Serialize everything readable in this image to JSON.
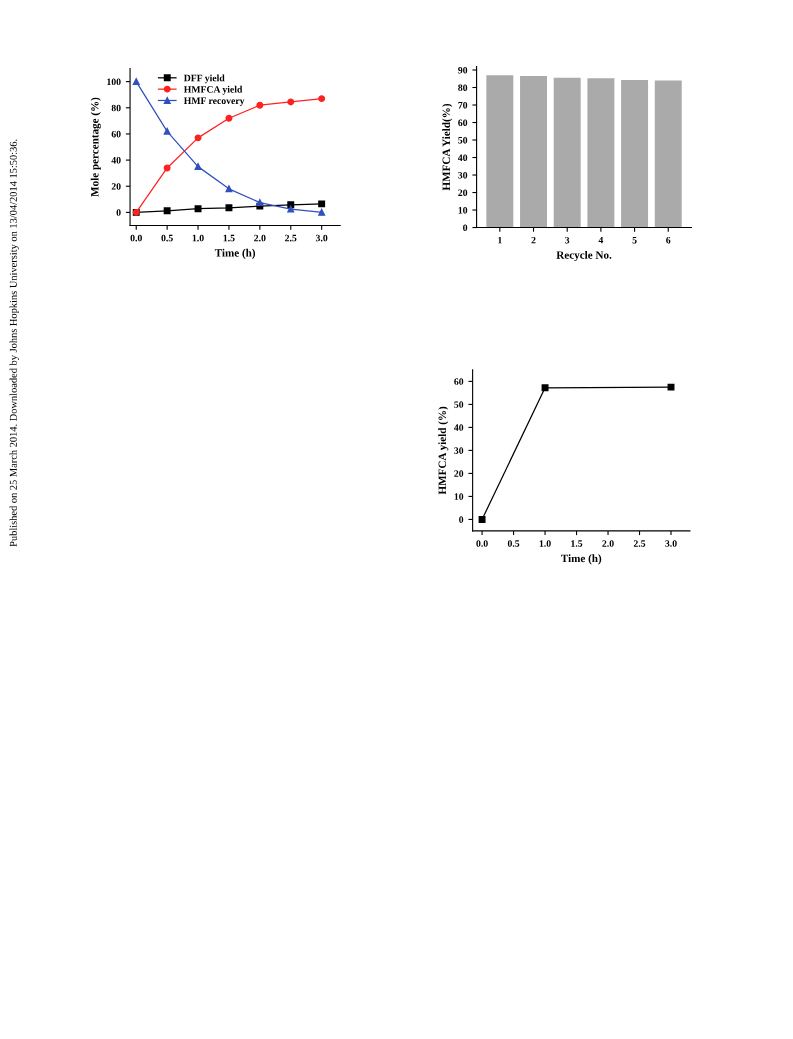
{
  "chart_data": [
    {
      "type": "line",
      "xlabel": "Time (h)",
      "ylabel": "Mole percentage (%)",
      "x": [
        0,
        0.5,
        1.0,
        1.5,
        2.0,
        2.5,
        3.0
      ],
      "series": [
        {
          "name": "DFF yield",
          "color": "#000000",
          "marker": "square",
          "values": [
            0,
            1.2,
            2.8,
            3.5,
            4.8,
            5.8,
            6.5
          ]
        },
        {
          "name": "HMFCA yield",
          "color": "#ff2020",
          "marker": "circle",
          "values": [
            0,
            34,
            57,
            72,
            82,
            84.5,
            87
          ]
        },
        {
          "name": "HMF recovery",
          "color": "#3050c0",
          "marker": "triangle",
          "values": [
            100,
            62,
            35,
            18,
            7.5,
            2.5,
            0
          ]
        }
      ],
      "xlim": [
        -0.1,
        3.3
      ],
      "xticks": [
        {
          "value": 0,
          "label": "0.0"
        },
        {
          "value": 0.5,
          "label": "0.5"
        },
        {
          "value": 1.0,
          "label": "1.0"
        },
        {
          "value": 1.5,
          "label": "1.5"
        },
        {
          "value": 2.0,
          "label": "2.0"
        },
        {
          "value": 2.5,
          "label": "2.5"
        },
        {
          "value": 3.0,
          "label": "3.0"
        }
      ],
      "ylim": [
        -10,
        110
      ],
      "yticks": [
        0,
        20,
        40,
        60,
        80,
        100
      ],
      "legend": "top",
      "grid": false,
      "annotations": [
        "Published on 25 March 2014. Downloaded by Johns Hopkins University on 13/04/2014 15:50:36."
      ]
    },
    {
      "type": "bar",
      "xlabel": "Recycle No.",
      "ylabel": "HMFCA Yield(%)",
      "categories": [
        "1",
        "2",
        "3",
        "4",
        "5",
        "6"
      ],
      "values": [
        87,
        86.5,
        85.5,
        85.3,
        84.3,
        84
      ],
      "color": "#aaaaaa",
      "ylim": [
        0,
        92
      ],
      "yticks": [
        0,
        10,
        20,
        30,
        40,
        50,
        60,
        70,
        80,
        90
      ],
      "grid": false
    },
    {
      "type": "line",
      "xlabel": "Time (h)",
      "ylabel": "HMFCA yield (%)",
      "x": [
        0,
        1.0,
        3.0
      ],
      "values": [
        0,
        57.2,
        57.5
      ],
      "color": "#000000",
      "marker": "square",
      "xlim": [
        -0.15,
        3.3
      ],
      "xticks": [
        {
          "value": 0,
          "label": "0.0"
        },
        {
          "value": 0.5,
          "label": "0.5"
        },
        {
          "value": 1.0,
          "label": "1.0"
        },
        {
          "value": 1.5,
          "label": "1.5"
        },
        {
          "value": 2.0,
          "label": "2.0"
        },
        {
          "value": 2.5,
          "label": "2.5"
        },
        {
          "value": 3.0,
          "label": "3.0"
        }
      ],
      "ylim": [
        -5,
        65
      ],
      "yticks": [
        0,
        10,
        20,
        30,
        40,
        50,
        60
      ],
      "grid": false
    }
  ]
}
